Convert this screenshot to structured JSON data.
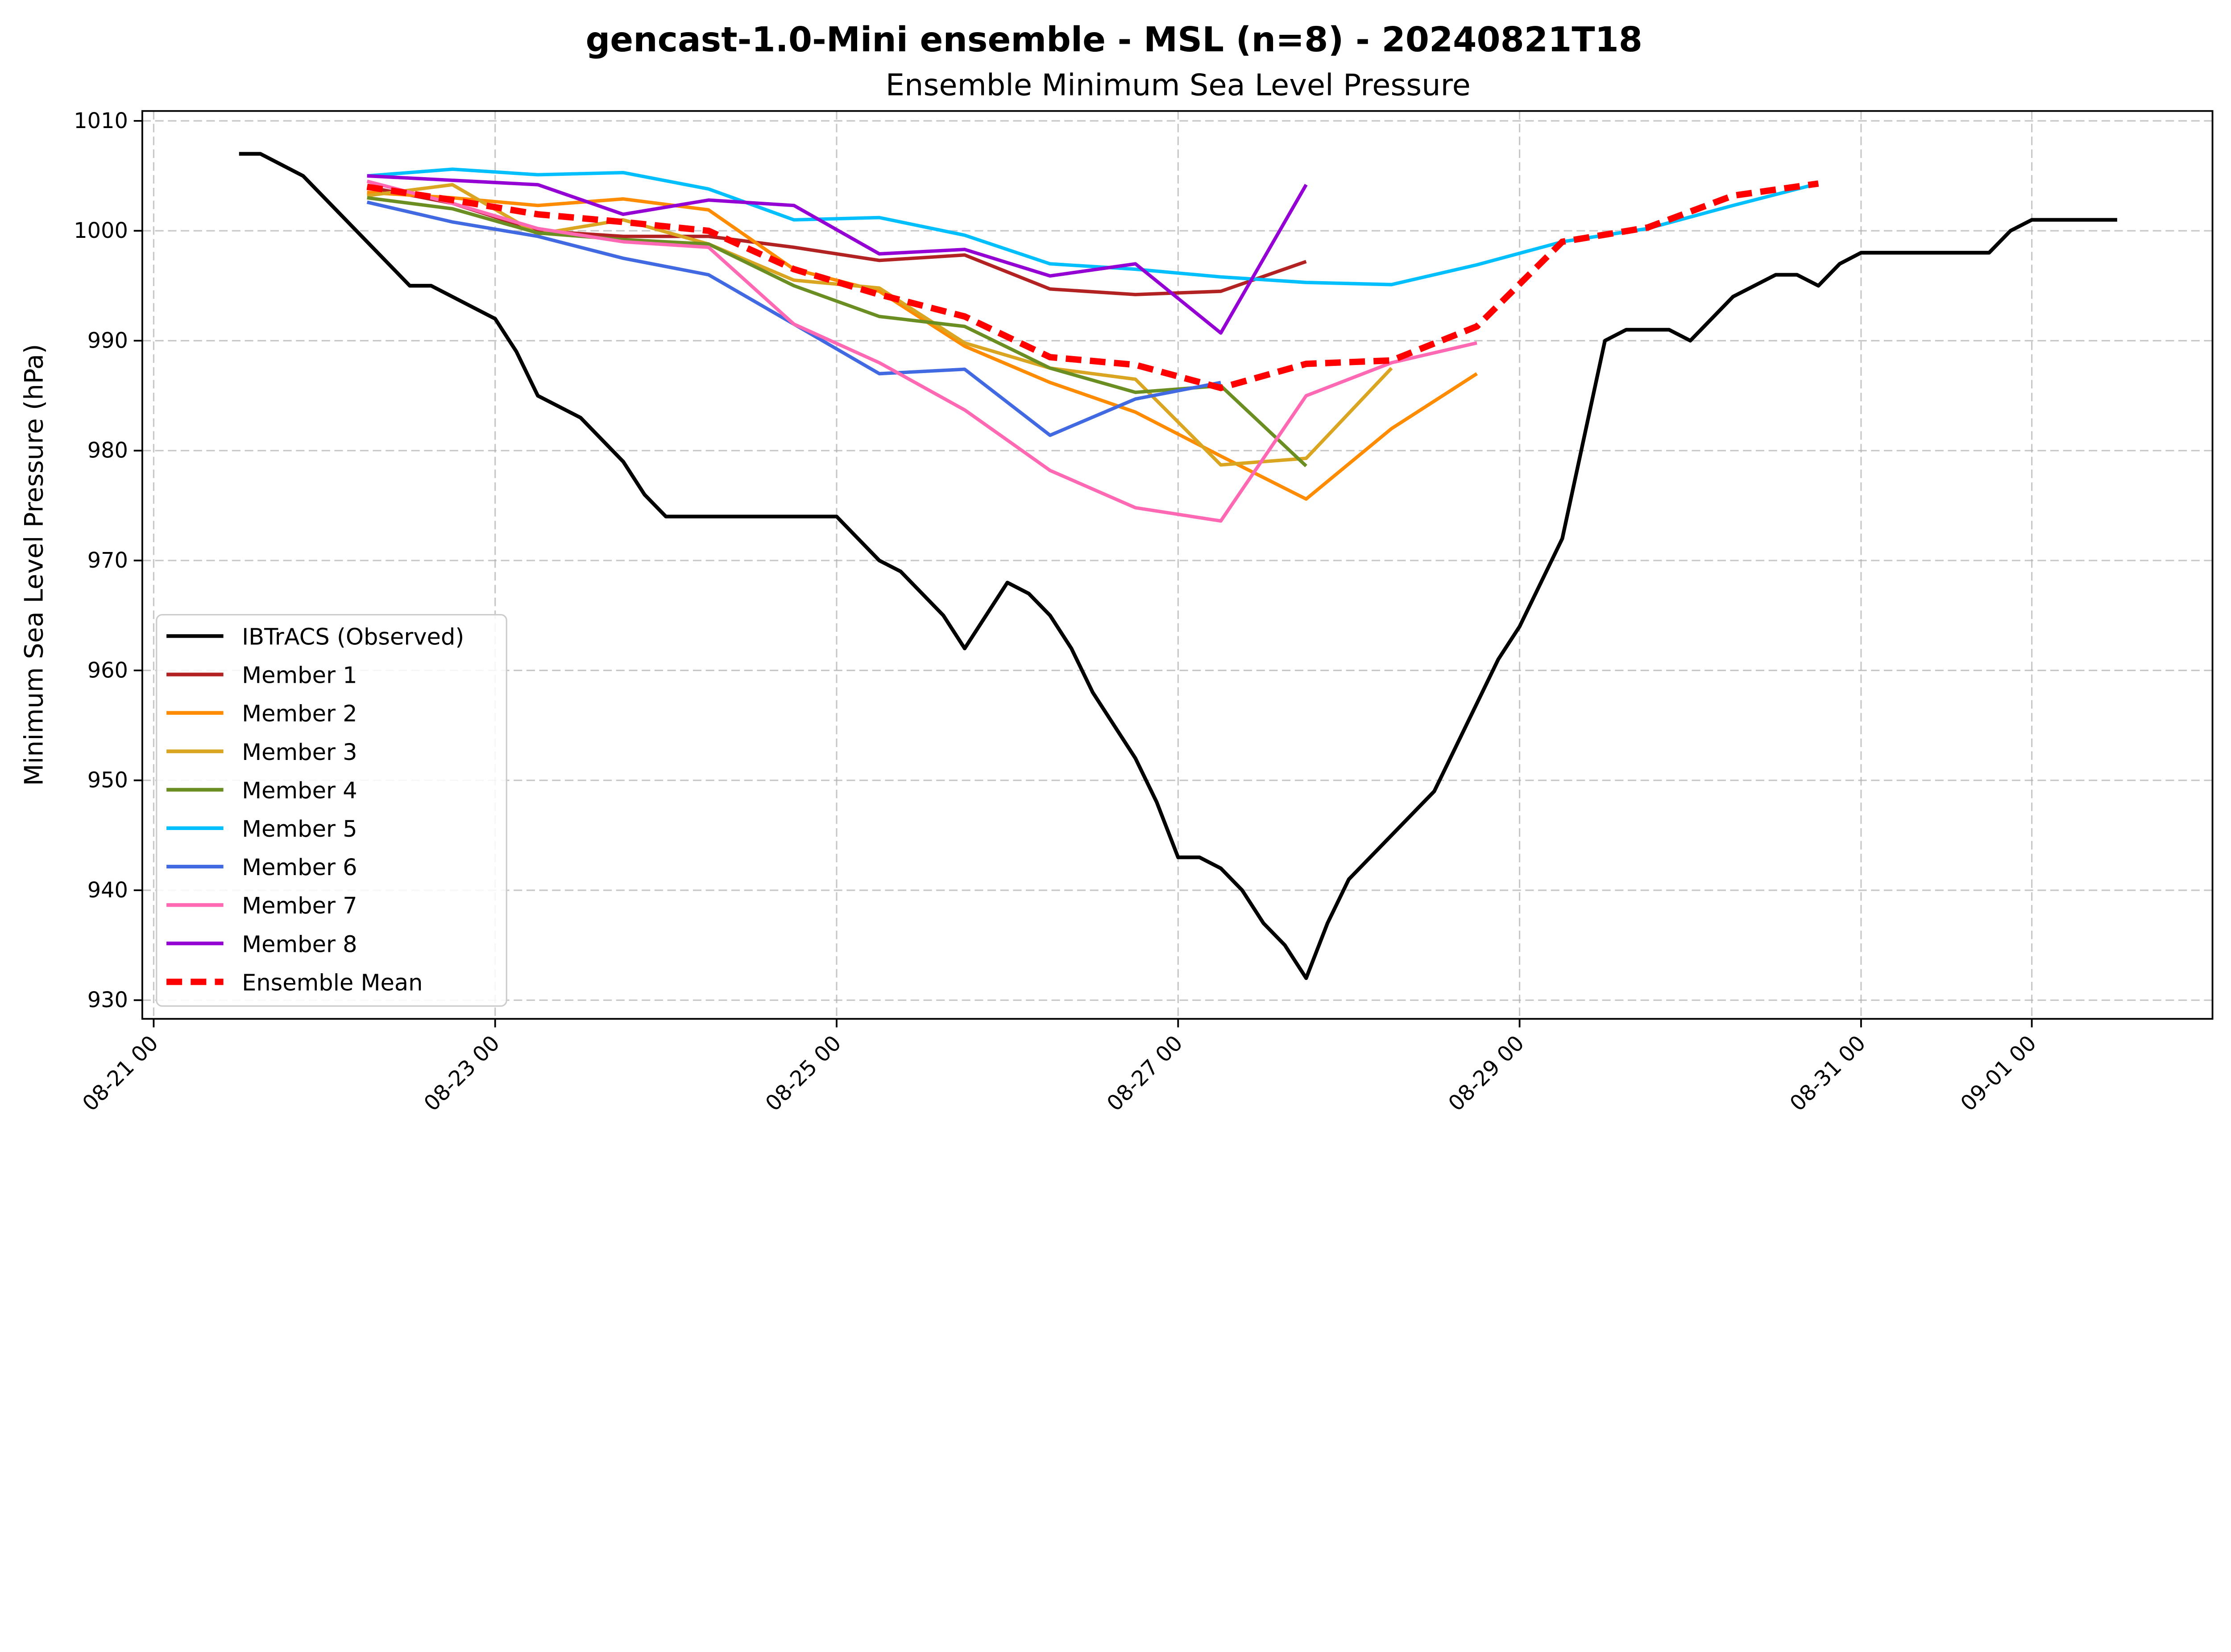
{
  "chart_data": {
    "type": "line",
    "title": "gencast-1.0-Mini ensemble - MSL (n=8) - 20240821T18",
    "subtitle": "Ensemble Minimum Sea Level Pressure",
    "xlabel": "",
    "ylabel": "Minimum Sea Level Pressure (hPa)",
    "xlim": [
      "2024-08-20 22:24",
      "2024-09-02 01:24"
    ],
    "ylim": [
      928.3,
      1010.9
    ],
    "grid": true,
    "legend_placement": "lower-left",
    "x_ticks": [
      {
        "date": "2024-08-21 00:00",
        "label": "08-21 00"
      },
      {
        "date": "2024-08-23 00:00",
        "label": "08-23 00"
      },
      {
        "date": "2024-08-25 00:00",
        "label": "08-25 00"
      },
      {
        "date": "2024-08-27 00:00",
        "label": "08-27 00"
      },
      {
        "date": "2024-08-29 00:00",
        "label": "08-29 00"
      },
      {
        "date": "2024-08-31 00:00",
        "label": "08-31 00"
      },
      {
        "date": "2024-09-01 00:00",
        "label": "09-01 00"
      }
    ],
    "y_ticks": [
      930,
      940,
      950,
      960,
      970,
      980,
      990,
      1000,
      1010
    ],
    "forecast_times": [
      "2024-08-22 06:00",
      "2024-08-22 18:00",
      "2024-08-23 06:00",
      "2024-08-23 18:00",
      "2024-08-24 06:00",
      "2024-08-24 18:00",
      "2024-08-25 06:00",
      "2024-08-25 18:00",
      "2024-08-26 06:00",
      "2024-08-26 18:00",
      "2024-08-27 06:00",
      "2024-08-27 18:00",
      "2024-08-28 06:00",
      "2024-08-28 18:00",
      "2024-08-29 06:00",
      "2024-08-29 18:00",
      "2024-08-30 06:00",
      "2024-08-30 18:00"
    ],
    "observed": {
      "name": "IBTrACS (Observed)",
      "color": "#000000",
      "x": [
        "2024-08-21 12:00",
        "2024-08-21 15:00",
        "2024-08-21 21:00",
        "2024-08-22 12:00",
        "2024-08-22 15:00",
        "2024-08-23 00:00",
        "2024-08-23 03:00",
        "2024-08-23 06:00",
        "2024-08-23 12:00",
        "2024-08-23 18:00",
        "2024-08-23 21:00",
        "2024-08-24 00:00",
        "2024-08-25 00:00",
        "2024-08-25 06:00",
        "2024-08-25 09:00",
        "2024-08-25 15:00",
        "2024-08-25 18:00",
        "2024-08-26 00:00",
        "2024-08-26 03:00",
        "2024-08-26 06:00",
        "2024-08-26 09:00",
        "2024-08-26 12:00",
        "2024-08-26 18:00",
        "2024-08-26 21:00",
        "2024-08-27 00:00",
        "2024-08-27 03:00",
        "2024-08-27 06:00",
        "2024-08-27 09:00",
        "2024-08-27 12:00",
        "2024-08-27 15:00",
        "2024-08-27 18:00",
        "2024-08-27 21:00",
        "2024-08-28 00:00",
        "2024-08-28 12:00",
        "2024-08-28 21:00",
        "2024-08-29 00:00",
        "2024-08-29 06:00",
        "2024-08-29 12:00",
        "2024-08-29 15:00",
        "2024-08-29 21:00",
        "2024-08-30 00:00",
        "2024-08-30 06:00",
        "2024-08-30 12:00",
        "2024-08-30 15:00",
        "2024-08-30 18:00",
        "2024-08-30 21:00",
        "2024-08-31 00:00",
        "2024-08-31 18:00",
        "2024-08-31 21:00",
        "2024-09-01 00:00",
        "2024-09-01 12:00"
      ],
      "values": [
        1007,
        1007,
        1005,
        995,
        995,
        992,
        989,
        985,
        983,
        979,
        976,
        974,
        974,
        970,
        969,
        965,
        962,
        968,
        967,
        965,
        962,
        958,
        952,
        948,
        943,
        943,
        942,
        940,
        937,
        935,
        932,
        937,
        941,
        949,
        961,
        964,
        972,
        990,
        991,
        991,
        990,
        994,
        996,
        996,
        995,
        997,
        998,
        998,
        1000,
        1001,
        1001
      ]
    },
    "series": [
      {
        "name": "Member 1",
        "color": "#b22222",
        "values": [
          1004,
          1002.5,
          1000,
          999.5,
          999.5,
          998.5,
          997.3,
          997.8,
          994.7,
          994.2,
          994.5,
          997.2
        ]
      },
      {
        "name": "Member 2",
        "color": "#ff8c00",
        "values": [
          1003.5,
          1003,
          1002.3,
          1002.9,
          1001.9,
          996.5,
          994.5,
          989.5,
          986.2,
          983.5,
          979.5,
          975.6,
          982,
          987
        ]
      },
      {
        "name": "Member 3",
        "color": "#daa520",
        "values": [
          1003.2,
          1004.2,
          999.7,
          1001,
          998.8,
          995.5,
          994.8,
          989.8,
          987.5,
          986.5,
          978.7,
          979.3,
          987.5
        ]
      },
      {
        "name": "Member 4",
        "color": "#6b8e23",
        "values": [
          1003,
          1002,
          999.8,
          999.2,
          998.8,
          995,
          992.2,
          991.3,
          987.5,
          985.3,
          985.9,
          978.6
        ]
      },
      {
        "name": "Member 5",
        "color": "#00bfff",
        "values": [
          1005,
          1005.6,
          1005.1,
          1005.3,
          1003.8,
          1001,
          1001.2,
          999.6,
          997,
          996.5,
          995.8,
          995.3,
          995.1,
          996.9,
          999,
          1000.2,
          1002.3,
          1004.3
        ]
      },
      {
        "name": "Member 6",
        "color": "#4169e1",
        "values": [
          1002.6,
          1000.8,
          999.5,
          997.5,
          996,
          991.5,
          987,
          987.4,
          981.4,
          984.7,
          986.2
        ]
      },
      {
        "name": "Member 7",
        "color": "#ff69b4",
        "values": [
          1004.5,
          1002.5,
          1000.2,
          999,
          998.5,
          991.5,
          988,
          983.7,
          978.2,
          974.8,
          973.6,
          985,
          988,
          989.8
        ]
      },
      {
        "name": "Member 8",
        "color": "#9400d3",
        "values": [
          1005,
          1004.6,
          1004.2,
          1001.5,
          1002.8,
          1002.3,
          997.9,
          998.3,
          995.9,
          997,
          990.7,
          1004.2
        ]
      }
    ],
    "mean": {
      "name": "Ensemble Mean",
      "color": "#ff0000",
      "style": "dashed",
      "values": [
        1004,
        1002.8,
        1001.5,
        1000.8,
        1000,
        996.5,
        994.2,
        992.2,
        988.5,
        987.8,
        985.7,
        987.9,
        988.2,
        991.3,
        999,
        1000.3,
        1003.2,
        1004.3
      ]
    }
  }
}
